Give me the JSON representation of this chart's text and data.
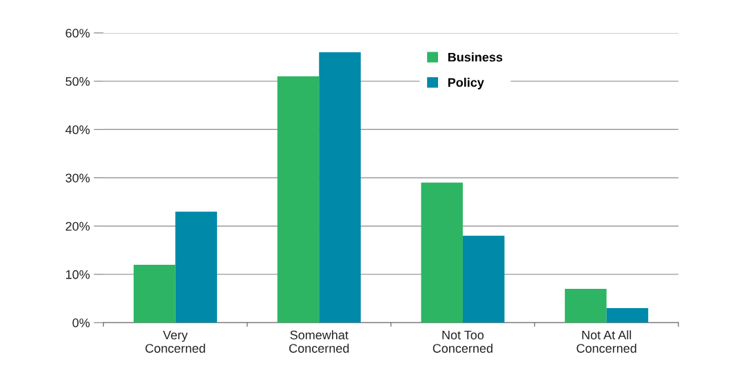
{
  "chart_data": {
    "type": "bar",
    "categories": [
      "Very\nConcerned",
      "Somewhat\nConcerned",
      "Not Too\nConcerned",
      "Not At All\nConcerned"
    ],
    "series": [
      {
        "name": "Business",
        "color": "#2db563",
        "values": [
          12,
          51,
          29,
          7
        ]
      },
      {
        "name": "Policy",
        "color": "#0089a8",
        "values": [
          23,
          56,
          18,
          3
        ]
      }
    ],
    "ylim": [
      0,
      60
    ],
    "yticks": [
      {
        "value": 0,
        "label": "0%"
      },
      {
        "value": 10,
        "label": "10%"
      },
      {
        "value": 20,
        "label": "20%"
      },
      {
        "value": 30,
        "label": "30%"
      },
      {
        "value": 40,
        "label": "40%"
      },
      {
        "value": 50,
        "label": "50%"
      },
      {
        "value": 60,
        "label": "60%"
      }
    ],
    "grid": "y",
    "legend": "top right"
  }
}
